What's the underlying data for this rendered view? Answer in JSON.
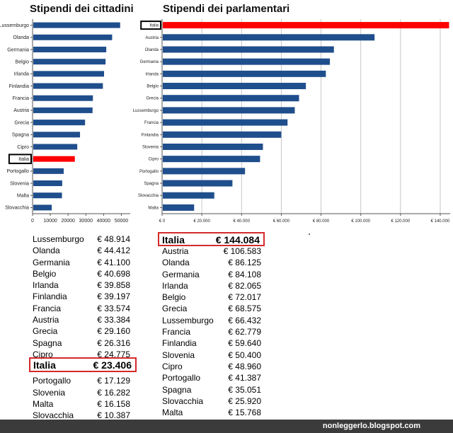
{
  "titles": {
    "citizens": "Stipendi dei cittadini",
    "parliament": "Stipendi dei parlamentari"
  },
  "colors": {
    "bar": "#1f4e8c",
    "highlight": "#ff0000",
    "frame": "#d52a2a",
    "footer": "#3b3b3b"
  },
  "chart_data": [
    {
      "type": "bar",
      "orientation": "horizontal",
      "title": "Stipendi dei cittadini",
      "categories": [
        "Lussemburgo",
        "Olanda",
        "Germania",
        "Belgio",
        "Irlanda",
        "Finlandia",
        "Francia",
        "Austria",
        "Grecia",
        "Spagna",
        "Cipro",
        "Italia",
        "Portogallo",
        "Slovenia",
        "Malta",
        "Slovacchia"
      ],
      "values": [
        48914,
        44412,
        41100,
        40698,
        39858,
        39197,
        33574,
        33384,
        29160,
        26316,
        24775,
        23406,
        17129,
        16282,
        16158,
        10387
      ],
      "highlight": "Italia",
      "xlim": [
        0,
        55000
      ],
      "xticks": [
        0,
        10000,
        20000,
        30000,
        40000,
        50000
      ],
      "xtick_labels": [
        "0",
        "10000",
        "20000",
        "30000",
        "40000",
        "50000"
      ],
      "grid": false
    },
    {
      "type": "bar",
      "orientation": "horizontal",
      "title": "Stipendi dei parlamentari",
      "categories": [
        "Italia",
        "Austria",
        "Olanda",
        "Germania",
        "Irlanda",
        "Belgio",
        "Grecia",
        "Lussemburgo",
        "Francia",
        "Finlandia",
        "Slovenia",
        "Cipro",
        "Portogallo",
        "Spagna",
        "Slovacchia",
        "Malta"
      ],
      "values": [
        144084,
        106583,
        86125,
        84108,
        82065,
        72017,
        68575,
        66432,
        62779,
        59640,
        50400,
        48960,
        41387,
        35051,
        25920,
        15768
      ],
      "highlight": "Italia",
      "xlim": [
        0,
        145000
      ],
      "xticks": [
        0,
        20000,
        40000,
        60000,
        80000,
        100000,
        120000,
        140000
      ],
      "xtick_labels": [
        "€ 0",
        "€ 20.000",
        "€ 40.000",
        "€ 60.000",
        "€ 80.000",
        "€ 100.000",
        "€ 120.000",
        "€ 140.000"
      ],
      "grid": true
    }
  ],
  "table_citizens": {
    "rows_top": [
      {
        "name": "Lussemburgo",
        "value": "€ 48.914"
      },
      {
        "name": "Olanda",
        "value": "€ 44.412"
      },
      {
        "name": "Germania",
        "value": "€ 41.100"
      },
      {
        "name": "Belgio",
        "value": "€ 40.698"
      },
      {
        "name": "Irlanda",
        "value": "€ 39.858"
      },
      {
        "name": "Finlandia",
        "value": "€ 39.197"
      },
      {
        "name": "Francia",
        "value": "€ 33.574"
      },
      {
        "name": "Austria",
        "value": "€ 33.384"
      },
      {
        "name": "Grecia",
        "value": "€ 29.160"
      },
      {
        "name": "Spagna",
        "value": "€ 26.316"
      },
      {
        "name": "Cipro",
        "value": "€ 24.775"
      }
    ],
    "highlight": {
      "name": "Italia",
      "value": "€ 23.406"
    },
    "rows_bottom": [
      {
        "name": "Portogallo",
        "value": "€ 17.129"
      },
      {
        "name": "Slovenia",
        "value": "€ 16.282"
      },
      {
        "name": "Malta",
        "value": "€ 16.158"
      },
      {
        "name": "Slovacchia",
        "value": "€ 10.387"
      }
    ]
  },
  "table_parliament": {
    "highlight": {
      "name": "Italia",
      "value": "€ 144.084"
    },
    "rows": [
      {
        "name": "Austria",
        "value": "€ 106.583"
      },
      {
        "name": "Olanda",
        "value": "€ 86.125"
      },
      {
        "name": "Germania",
        "value": "€ 84.108"
      },
      {
        "name": "Irlanda",
        "value": "€ 82.065"
      },
      {
        "name": "Belgio",
        "value": "€ 72.017"
      },
      {
        "name": "Grecia",
        "value": "€ 68.575"
      },
      {
        "name": "Lussemburgo",
        "value": "€ 66.432"
      },
      {
        "name": "Francia",
        "value": "€ 62.779"
      },
      {
        "name": "Finlandia",
        "value": "€ 59.640"
      },
      {
        "name": "Slovenia",
        "value": "€ 50.400"
      },
      {
        "name": "Cipro",
        "value": "€ 48.960"
      },
      {
        "name": "Portogallo",
        "value": "€ 41.387"
      },
      {
        "name": "Spagna",
        "value": "€ 35.051"
      },
      {
        "name": "Slovacchia",
        "value": "€ 25.920"
      },
      {
        "name": "Malta",
        "value": "€ 15.768"
      }
    ]
  },
  "footer": {
    "text": "nonleggerlo.blogspot.com"
  }
}
